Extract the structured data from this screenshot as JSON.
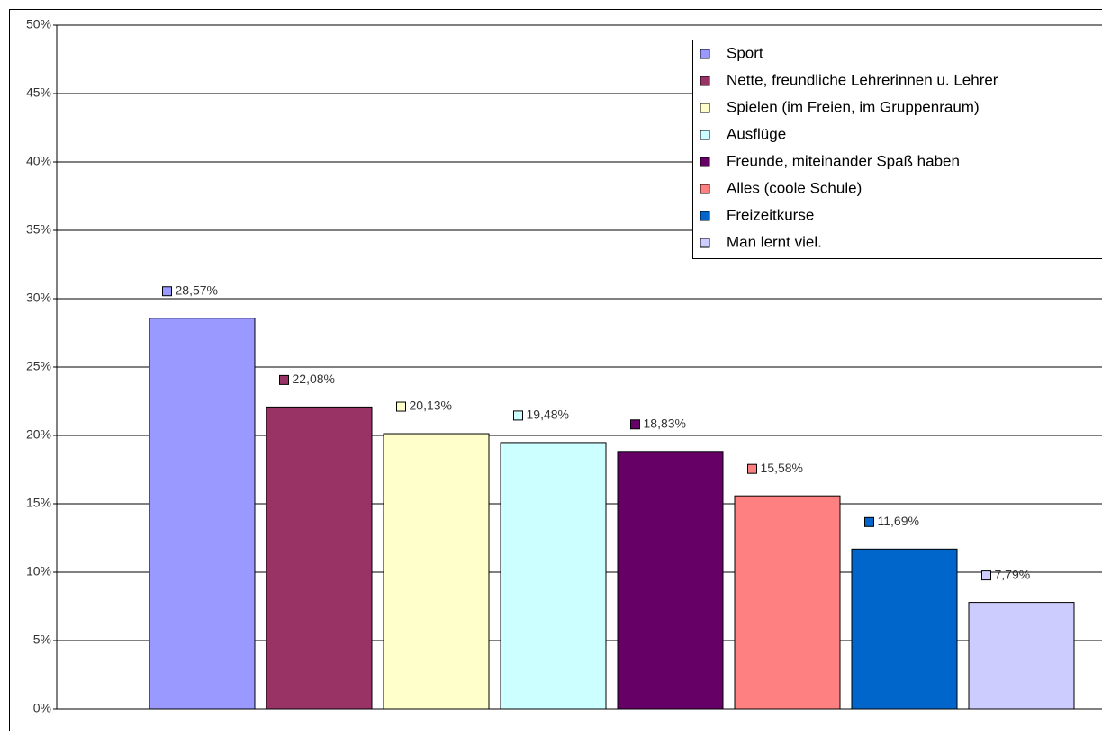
{
  "chart_data": {
    "type": "bar",
    "ylim": [
      0,
      50
    ],
    "yticks": [
      {
        "value": 0,
        "label": "0%"
      },
      {
        "value": 5,
        "label": "5%"
      },
      {
        "value": 10,
        "label": "10%"
      },
      {
        "value": 15,
        "label": "15%"
      },
      {
        "value": 20,
        "label": "20%"
      },
      {
        "value": 25,
        "label": "25%"
      },
      {
        "value": 30,
        "label": "30%"
      },
      {
        "value": 35,
        "label": "35%"
      },
      {
        "value": 40,
        "label": "40%"
      },
      {
        "value": 45,
        "label": "45%"
      },
      {
        "value": 50,
        "label": "50%"
      }
    ],
    "grid": true,
    "legend": "top-right",
    "series": [
      {
        "name": "Sport",
        "color": "#9999ff",
        "values": [
          28.57
        ],
        "value_labels": [
          "28,57%"
        ]
      },
      {
        "name": "Nette, freundliche Lehrerinnen u. Lehrer",
        "color": "#993366",
        "values": [
          22.08
        ],
        "value_labels": [
          "22,08%"
        ]
      },
      {
        "name": "Spielen (im Freien, im Gruppenraum)",
        "color": "#ffffcc",
        "values": [
          20.13
        ],
        "value_labels": [
          "20,13%"
        ]
      },
      {
        "name": "Ausflüge",
        "color": "#ccffff",
        "values": [
          19.48
        ],
        "value_labels": [
          "19,48%"
        ]
      },
      {
        "name": "Freunde, miteinander Spaß haben",
        "color": "#660066",
        "values": [
          18.83
        ],
        "value_labels": [
          "18,83%"
        ]
      },
      {
        "name": "Alles (coole Schule)",
        "color": "#ff8080",
        "values": [
          15.58
        ],
        "value_labels": [
          "15,58%"
        ]
      },
      {
        "name": "Freizeitkurse",
        "color": "#0066cc",
        "values": [
          11.69
        ],
        "value_labels": [
          "11,69%"
        ]
      },
      {
        "name": "Man lernt viel.",
        "color": "#ccccff",
        "values": [
          7.79
        ],
        "value_labels": [
          "7,79%"
        ]
      }
    ]
  }
}
